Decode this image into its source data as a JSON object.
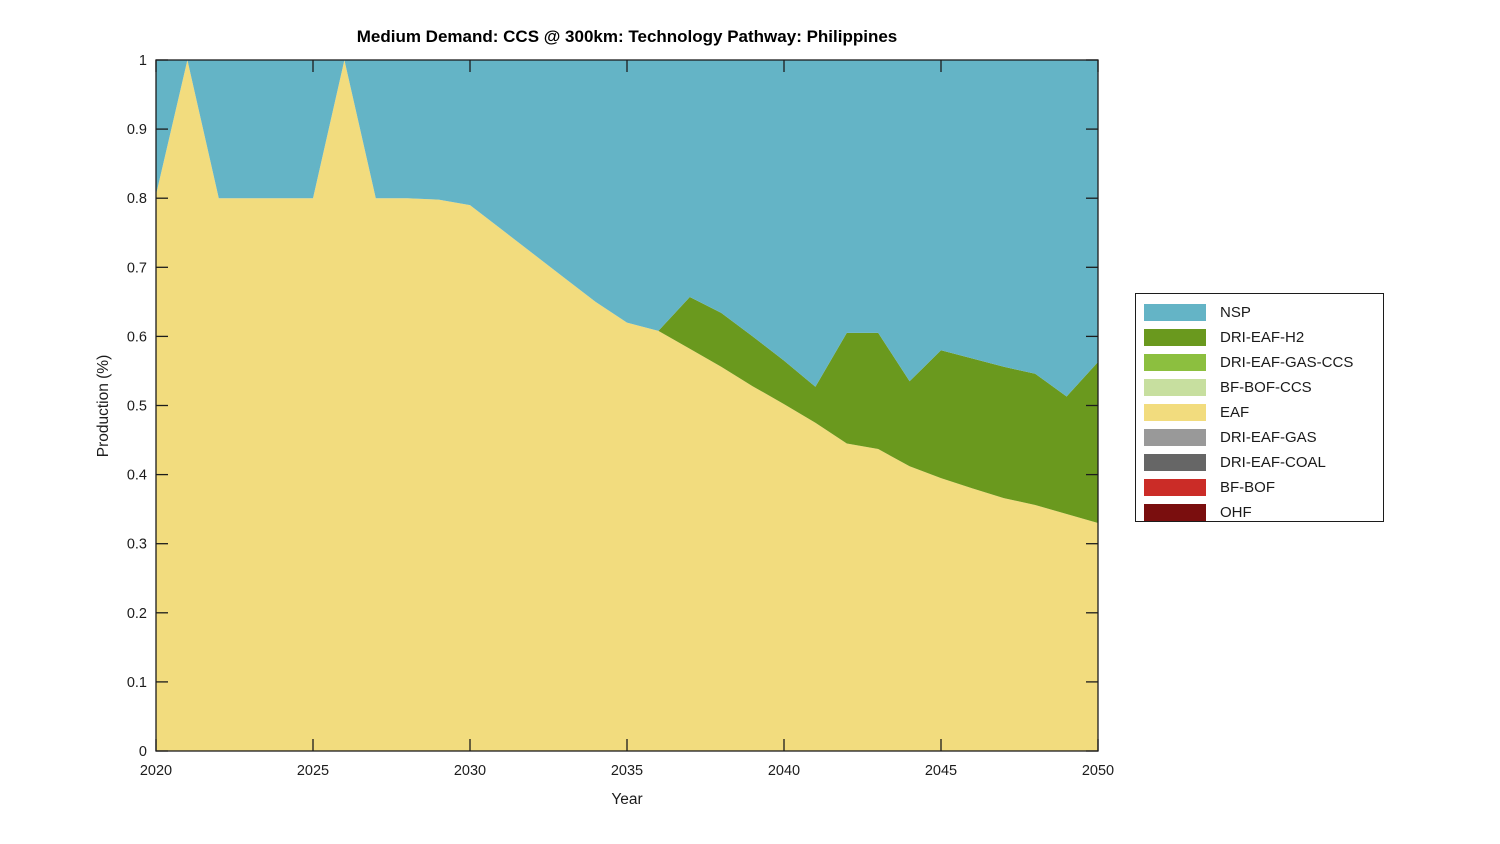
{
  "figure": {
    "background": "#ffffff",
    "axis_color": "#1c1c1c"
  },
  "chart_data": {
    "type": "area",
    "stacked": true,
    "title": "Medium Demand: CCS @ 300km: Technology Pathway: Philippines",
    "xlabel": "Year",
    "ylabel": "Production (%)",
    "xlim": [
      2020,
      2050
    ],
    "ylim": [
      0,
      1
    ],
    "grid": false,
    "xticks": [
      2020,
      2025,
      2030,
      2035,
      2040,
      2045,
      2050
    ],
    "yticks": [
      0,
      0.1,
      0.2,
      0.3,
      0.4,
      0.5,
      0.6,
      0.7,
      0.8,
      0.9,
      1
    ],
    "ytick_labels": [
      "0",
      "0.1",
      "0.2",
      "0.3",
      "0.4",
      "0.5",
      "0.6",
      "0.7",
      "0.8",
      "0.9",
      "1"
    ],
    "x": [
      2020,
      2021,
      2022,
      2023,
      2024,
      2025,
      2026,
      2027,
      2028,
      2029,
      2030,
      2031,
      2032,
      2033,
      2034,
      2035,
      2036,
      2037,
      2038,
      2039,
      2040,
      2041,
      2042,
      2043,
      2044,
      2045,
      2046,
      2047,
      2048,
      2049,
      2050
    ],
    "legend": {
      "position": "right-outside",
      "entries": [
        "NSP",
        "DRI-EAF-H2",
        "DRI-EAF-GAS-CCS",
        "BF-BOF-CCS",
        "EAF",
        "DRI-EAF-GAS",
        "DRI-EAF-COAL",
        "BF-BOF",
        "OHF"
      ]
    },
    "stack_order_bottom_to_top": [
      "OHF",
      "BF-BOF",
      "DRI-EAF-COAL",
      "DRI-EAF-GAS",
      "EAF",
      "BF-BOF-CCS",
      "DRI-EAF-GAS-CCS",
      "DRI-EAF-H2",
      "NSP"
    ],
    "series": [
      {
        "name": "NSP",
        "color": "#64B4C6",
        "values": [
          0.195,
          0,
          0.2,
          0.2,
          0.2,
          0.2,
          0,
          0.2,
          0.2,
          0.202,
          0.21,
          0.245,
          0.28,
          0.315,
          0.35,
          0.38,
          0.392,
          0.343,
          0.366,
          0.4,
          0.435,
          0.473,
          0.395,
          0.395,
          0.465,
          0.42,
          0.432,
          0.444,
          0.454,
          0.487,
          0.437
        ]
      },
      {
        "name": "DRI-EAF-H2",
        "color": "#6A991E",
        "values": [
          0,
          0,
          0,
          0,
          0,
          0,
          0,
          0,
          0,
          0,
          0,
          0,
          0,
          0,
          0,
          0,
          0,
          0.075,
          0.078,
          0.072,
          0.063,
          0.052,
          0.16,
          0.168,
          0.123,
          0.185,
          0.188,
          0.19,
          0.19,
          0.17,
          0.233
        ]
      },
      {
        "name": "DRI-EAF-GAS-CCS",
        "color": "#8CBF3F",
        "values": [
          0,
          0,
          0,
          0,
          0,
          0,
          0,
          0,
          0,
          0,
          0,
          0,
          0,
          0,
          0,
          0,
          0,
          0,
          0,
          0,
          0,
          0,
          0,
          0,
          0,
          0,
          0,
          0,
          0,
          0,
          0
        ]
      },
      {
        "name": "BF-BOF-CCS",
        "color": "#C7DF9F",
        "values": [
          0,
          0,
          0,
          0,
          0,
          0,
          0,
          0,
          0,
          0,
          0,
          0,
          0,
          0,
          0,
          0,
          0,
          0,
          0,
          0,
          0,
          0,
          0,
          0,
          0,
          0,
          0,
          0,
          0,
          0,
          0
        ]
      },
      {
        "name": "EAF",
        "color": "#F2DC7E",
        "values": [
          0.805,
          1,
          0.8,
          0.8,
          0.8,
          0.8,
          1,
          0.8,
          0.8,
          0.798,
          0.79,
          0.755,
          0.72,
          0.685,
          0.65,
          0.62,
          0.608,
          0.582,
          0.556,
          0.528,
          0.502,
          0.475,
          0.445,
          0.437,
          0.412,
          0.395,
          0.38,
          0.366,
          0.356,
          0.343,
          0.33
        ]
      },
      {
        "name": "DRI-EAF-GAS",
        "color": "#999999",
        "values": [
          0,
          0,
          0,
          0,
          0,
          0,
          0,
          0,
          0,
          0,
          0,
          0,
          0,
          0,
          0,
          0,
          0,
          0,
          0,
          0,
          0,
          0,
          0,
          0,
          0,
          0,
          0,
          0,
          0,
          0,
          0
        ]
      },
      {
        "name": "DRI-EAF-COAL",
        "color": "#666666",
        "values": [
          0,
          0,
          0,
          0,
          0,
          0,
          0,
          0,
          0,
          0,
          0,
          0,
          0,
          0,
          0,
          0,
          0,
          0,
          0,
          0,
          0,
          0,
          0,
          0,
          0,
          0,
          0,
          0,
          0,
          0,
          0
        ]
      },
      {
        "name": "BF-BOF",
        "color": "#CB2C27",
        "values": [
          0,
          0,
          0,
          0,
          0,
          0,
          0,
          0,
          0,
          0,
          0,
          0,
          0,
          0,
          0,
          0,
          0,
          0,
          0,
          0,
          0,
          0,
          0,
          0,
          0,
          0,
          0,
          0,
          0,
          0,
          0
        ]
      },
      {
        "name": "OHF",
        "color": "#7A0E0E",
        "values": [
          0,
          0,
          0,
          0,
          0,
          0,
          0,
          0,
          0,
          0,
          0,
          0,
          0,
          0,
          0,
          0,
          0,
          0,
          0,
          0,
          0,
          0,
          0,
          0,
          0,
          0,
          0,
          0,
          0,
          0,
          0
        ]
      }
    ]
  }
}
